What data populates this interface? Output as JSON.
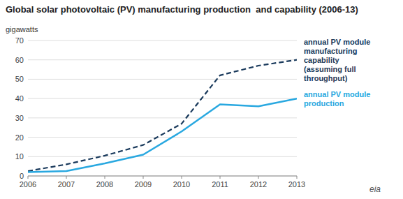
{
  "chart_data": {
    "type": "line",
    "title": "Global solar photovoltaic (PV) manufacturing production  and capability (2006-13)",
    "y_label": "gigawatts",
    "x": [
      2006,
      2007,
      2008,
      2009,
      2010,
      2011,
      2012,
      2013
    ],
    "series": [
      {
        "name": "annual PV module\nmanufacturing\ncapability\n(assuming full\nthroughput)",
        "color": "#1a3a5c",
        "line_style": "dashed",
        "values": [
          2.5,
          6.0,
          10.5,
          16.0,
          27.0,
          52.0,
          57.0,
          60.0
        ]
      },
      {
        "name": "annual PV module\nproduction",
        "color": "#29a8e0",
        "line_style": "solid",
        "values": [
          2.0,
          2.5,
          6.5,
          11.0,
          23.0,
          37.0,
          36.0,
          40.0
        ]
      }
    ],
    "xlim": [
      2006,
      2013
    ],
    "xticks": [
      2006,
      2007,
      2008,
      2009,
      2010,
      2011,
      2012,
      2013
    ],
    "ylim": [
      0,
      70
    ],
    "yticks": [
      0,
      10,
      20,
      30,
      40,
      50,
      60,
      70
    ],
    "grid": true,
    "annotations": [
      {
        "text": "eia"
      }
    ]
  }
}
